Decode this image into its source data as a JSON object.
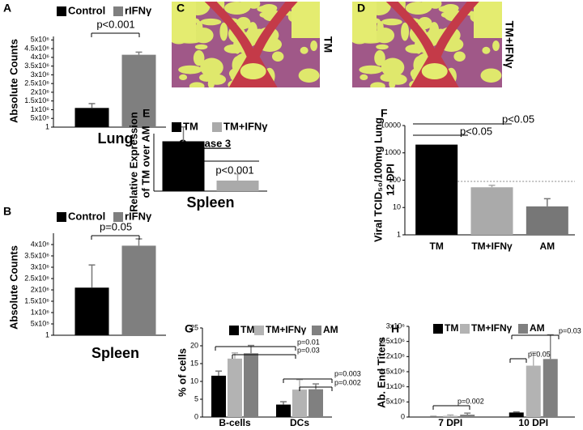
{
  "chart_data": [
    {
      "panel": "A",
      "type": "bar",
      "ylabel": "Absolute Counts",
      "categories": [
        "Lung"
      ],
      "series": [
        {
          "name": "Control",
          "color": "#000000",
          "values": [
            1100000
          ],
          "errors": [
            250000
          ]
        },
        {
          "name": "rIFNγ",
          "color": "#7f7f7f",
          "values": [
            4150000
          ],
          "errors": [
            150000
          ]
        }
      ],
      "ylim": [
        1,
        5200000
      ],
      "yticks": [
        1,
        {
          "value": 500000,
          "label": "5x10⁵"
        },
        {
          "value": 1000000,
          "label": "1x10⁶"
        },
        {
          "value": 1500000,
          "label": "1.5x10⁶"
        },
        {
          "value": 2000000,
          "label": "2x10⁶"
        },
        {
          "value": 2500000,
          "label": "2.5x10⁶"
        },
        {
          "value": 3000000,
          "label": "3x10⁶"
        },
        {
          "value": 3500000,
          "label": "3.5x10⁶"
        },
        {
          "value": 4000000,
          "label": "4x10⁶"
        },
        {
          "value": 4500000,
          "label": "4.5x10⁶"
        },
        {
          "value": 5000000,
          "label": "5x10⁶"
        }
      ],
      "annotations": [
        "p<0.001"
      ]
    },
    {
      "panel": "B",
      "type": "bar",
      "ylabel": "Absolute Counts",
      "categories": [
        "Spleen"
      ],
      "series": [
        {
          "name": "Control",
          "color": "#000000",
          "values": [
            2100000
          ],
          "errors": [
            1000000
          ]
        },
        {
          "name": "rIFNγ",
          "color": "#7f7f7f",
          "values": [
            3950000
          ],
          "errors": [
            300000
          ]
        }
      ],
      "ylim": [
        1,
        4500000
      ],
      "yticks": [
        1,
        {
          "value": 500000,
          "label": "5x10⁵"
        },
        {
          "value": 1000000,
          "label": "1x10⁶"
        },
        {
          "value": 1500000,
          "label": "1.5x10⁶"
        },
        {
          "value": 2000000,
          "label": "2x10⁶"
        },
        {
          "value": 2500000,
          "label": "2.5x10⁶"
        },
        {
          "value": 3000000,
          "label": "3x10⁶"
        },
        {
          "value": 3500000,
          "label": "3.5x10⁶"
        },
        {
          "value": 4000000,
          "label": "4x10⁶"
        }
      ],
      "annotations": [
        "p=0.05"
      ]
    },
    {
      "panel": "E",
      "type": "bar",
      "ylabel": [
        "Relative Expression",
        "of TM over AM"
      ],
      "subtitle": "Caspase 3",
      "categories": [
        "Spleen"
      ],
      "series": [
        {
          "name": "TM",
          "color": "#000000",
          "values": [
            5.2
          ],
          "errors": [
            1.5
          ]
        },
        {
          "name": "TM+IFNγ",
          "color": "#aaaaaa",
          "values": [
            1.1
          ],
          "errors": [
            0.7
          ]
        }
      ],
      "ylim": [
        0,
        6
      ],
      "annotations": [
        "p<0.001"
      ]
    },
    {
      "panel": "F",
      "type": "bar",
      "ylabel": [
        "Viral TCID₅₀/100mg Lung",
        "12 DPI"
      ],
      "log_scale": true,
      "categories": [
        "TM",
        "TM+IFNγ",
        "AM"
      ],
      "values": [
        2000,
        55,
        11
      ],
      "errors": [
        null,
        10,
        10
      ],
      "colors": [
        "#000000",
        "#aaaaaa",
        "#777777"
      ],
      "reference_line": 90,
      "ylim": [
        1,
        10000
      ],
      "yticks": [
        1,
        10,
        100,
        1000,
        10000
      ],
      "annotations": [
        "p<0.05",
        "p<0.05"
      ]
    },
    {
      "panel": "G",
      "type": "bar",
      "ylabel": "% of cells",
      "categories": [
        "B-cells",
        "DCs"
      ],
      "series": [
        {
          "name": "TM",
          "color": "#000000",
          "values": [
            11.6,
            3.5
          ],
          "errors": [
            1.3,
            0.8
          ]
        },
        {
          "name": "TM+IFNγ",
          "color": "#b3b3b3",
          "values": [
            16.4,
            7.7
          ],
          "errors": [
            1.6,
            2.8
          ]
        },
        {
          "name": "AM",
          "color": "#808080",
          "values": [
            17.9,
            7.8
          ],
          "errors": [
            2.2,
            1.5
          ]
        }
      ],
      "ylim": [
        0,
        25
      ],
      "yticks": [
        0,
        5,
        10,
        15,
        20,
        25
      ],
      "annotations": [
        "p=0.01",
        "p=0.03",
        "p=0.003",
        "p=0.002"
      ]
    },
    {
      "panel": "H",
      "type": "bar",
      "ylabel": "Ab. End Titers",
      "categories": [
        "7 DPI",
        "10 DPI"
      ],
      "series": [
        {
          "name": "TM",
          "color": "#000000",
          "values": [
            10000,
            150000
          ],
          "errors": [
            10000,
            20000
          ]
        },
        {
          "name": "TM+IFNγ",
          "color": "#b3b3b3",
          "values": [
            40000,
            1700000
          ],
          "errors": [
            30000,
            450000
          ]
        },
        {
          "name": "AM",
          "color": "#808080",
          "values": [
            80000,
            1920000
          ],
          "errors": [
            50000,
            800000
          ]
        }
      ],
      "ylim": [
        0,
        3000000
      ],
      "yticks": [
        0,
        {
          "value": 500000,
          "label": "5x10⁵"
        },
        {
          "value": 1000000,
          "label": "1x10⁶"
        },
        {
          "value": 1500000,
          "label": "1.5x10⁶"
        },
        {
          "value": 2000000,
          "label": "2x10⁶"
        },
        {
          "value": 2500000,
          "label": "2.5x10⁶"
        },
        {
          "value": 3000000,
          "label": "3x10⁶"
        }
      ],
      "annotations": [
        "p=0.002",
        "p=0.05",
        "p=0.03"
      ]
    }
  ],
  "image_panels": [
    {
      "panel": "C",
      "label": "TM"
    },
    {
      "panel": "D",
      "label": "TM+IFNγ"
    }
  ]
}
